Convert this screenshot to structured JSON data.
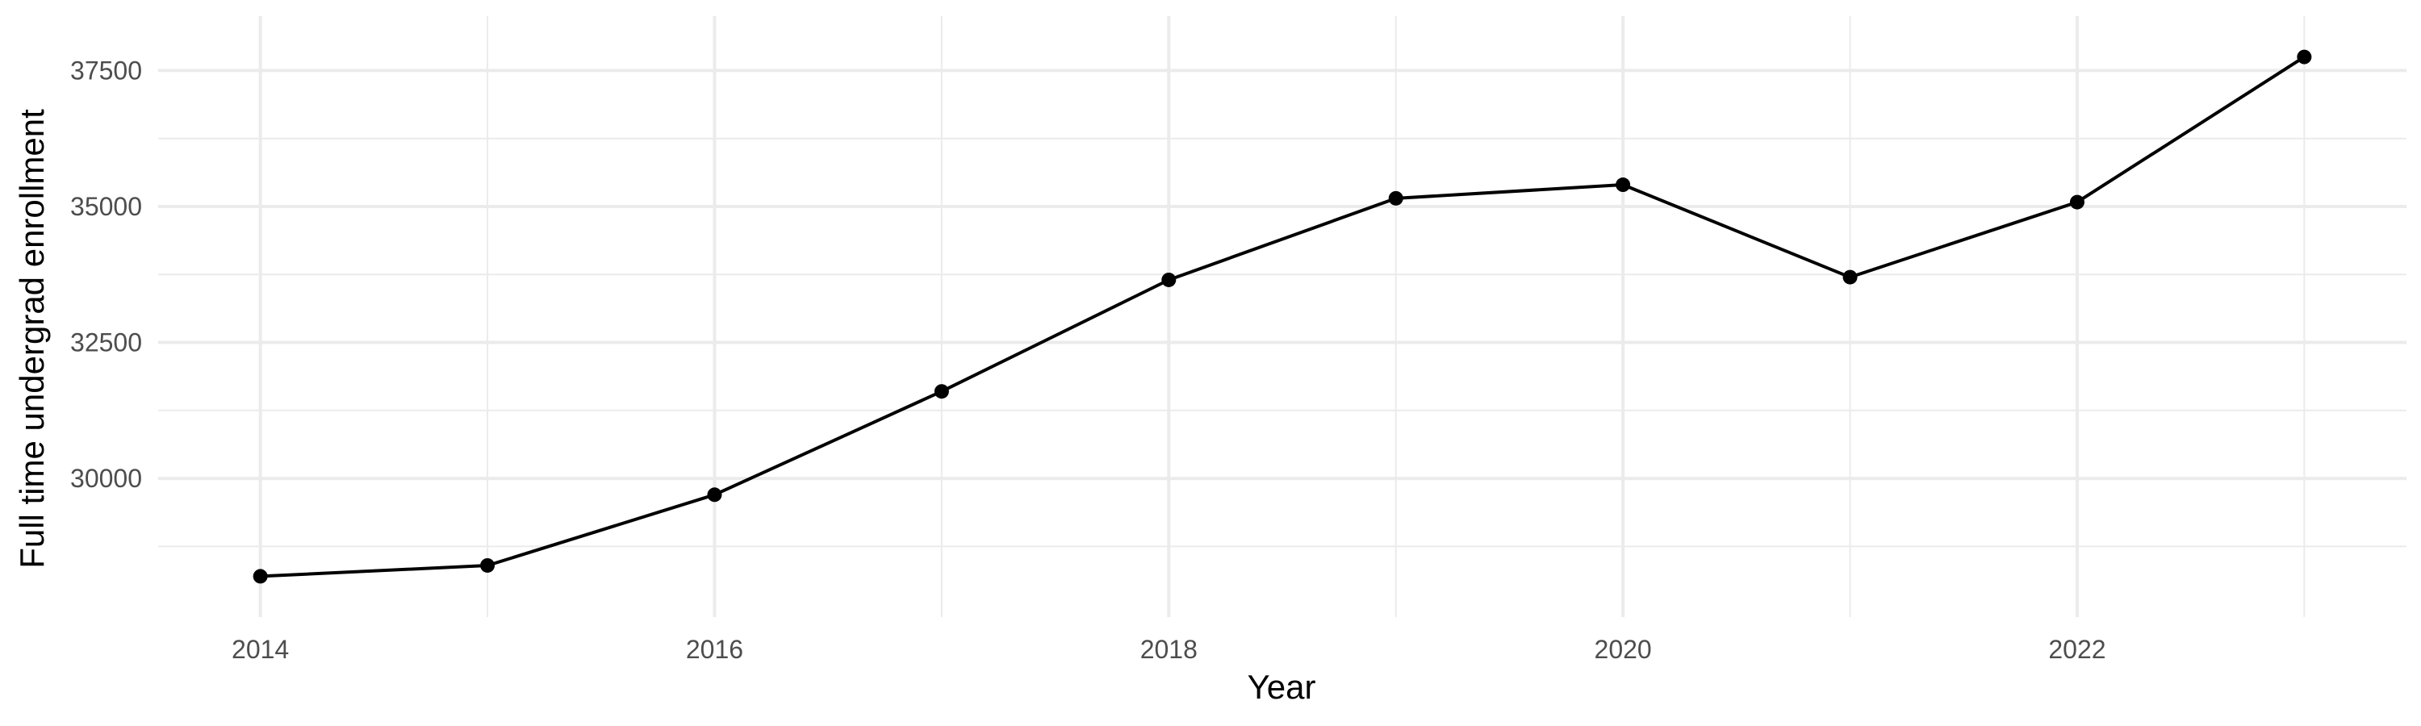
{
  "chart_data": {
    "type": "line",
    "xlabel": "Year",
    "ylabel": "Full time undergrad enrollment",
    "x": [
      2014,
      2015,
      2016,
      2017,
      2018,
      2019,
      2020,
      2021,
      2022,
      2023
    ],
    "values": [
      28200,
      28400,
      29700,
      31600,
      33650,
      35150,
      35400,
      33700,
      35080,
      37750
    ],
    "x_ticks": [
      "2014",
      "2016",
      "2018",
      "2020",
      "2022"
    ],
    "y_ticks": [
      "30000",
      "32500",
      "35000",
      "37500"
    ],
    "xlim": [
      2013.55,
      2023.45
    ],
    "ylim": [
      27450,
      38500
    ],
    "grid": true,
    "line_color": "#000000",
    "grid_color": "#ebebeb",
    "background": "#ffffff"
  }
}
